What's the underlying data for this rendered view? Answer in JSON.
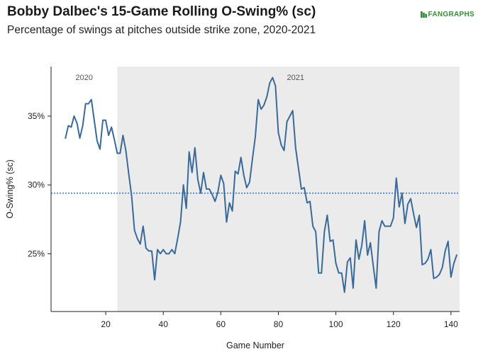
{
  "header": {
    "title": "Bobby Dalbec's 15-Game Rolling O-Swing% (sc)",
    "subtitle": "Percentage of swings at pitches outside strike zone, 2020-2021",
    "logo_text": "FANGRAPHS"
  },
  "colors": {
    "line": "#3a6a9a",
    "shade": "#ebebeb",
    "reference": "#3a6a9a",
    "logo": "#3a8a3a"
  },
  "chart_data": {
    "type": "line",
    "title": "Bobby Dalbec's 15-Game Rolling O-Swing% (sc)",
    "subtitle": "Percentage of swings at pitches outside strike zone, 2020-2021",
    "xlabel": "Game Number",
    "ylabel": "O-Swing% (sc)",
    "xlim": [
      1,
      143
    ],
    "ylim": [
      20.8,
      38.6
    ],
    "x_ticks": [
      20,
      40,
      60,
      80,
      100,
      120,
      140
    ],
    "y_ticks": [
      25,
      30,
      35
    ],
    "y_tick_labels": [
      "25%",
      "30%",
      "35%"
    ],
    "grid": false,
    "reference_line": {
      "y": 29.4,
      "style": "dotted"
    },
    "shaded_region": {
      "x_start": 24,
      "x_end": 143
    },
    "season_labels": [
      {
        "text": "2020",
        "x": 12.5
      },
      {
        "text": "2021",
        "x": 86
      }
    ],
    "series": [
      {
        "x": [
          6,
          7,
          8,
          9,
          10,
          11,
          12,
          13,
          14,
          15,
          16,
          17,
          18,
          19,
          20,
          21,
          22,
          23,
          24,
          25,
          26,
          27,
          28,
          29,
          30,
          31,
          32,
          33,
          34,
          35,
          36,
          37,
          38,
          39,
          40,
          41,
          42,
          43,
          44,
          45,
          46,
          47,
          48,
          49,
          50,
          51,
          52,
          53,
          54,
          55,
          56,
          57,
          58,
          59,
          60,
          61,
          62,
          63,
          64,
          65,
          66,
          67,
          68,
          69,
          70,
          71,
          72,
          73,
          74,
          75,
          76,
          77,
          78,
          79,
          80,
          81,
          82,
          83,
          84,
          85,
          86,
          87,
          88,
          89,
          90,
          91,
          92,
          93,
          94,
          95,
          96,
          97,
          98,
          99,
          100,
          101,
          102,
          103,
          104,
          105,
          106,
          107,
          108,
          109,
          110,
          111,
          112,
          113,
          114,
          115,
          116,
          117,
          118,
          119,
          120,
          121,
          122,
          123,
          124,
          125,
          126,
          127,
          128,
          129,
          130,
          131,
          132,
          133,
          134,
          135,
          136,
          137,
          138,
          139,
          140,
          141,
          142
        ],
        "values": [
          33.4,
          34.3,
          34.2,
          35.0,
          34.5,
          33.4,
          34.3,
          35.9,
          35.9,
          36.2,
          34.7,
          33.2,
          32.6,
          34.7,
          34.7,
          33.6,
          34.2,
          33.3,
          32.3,
          32.3,
          33.6,
          32.5,
          30.8,
          29.2,
          26.7,
          26.1,
          25.7,
          27.0,
          25.4,
          25.2,
          25.2,
          23.1,
          25.3,
          25.0,
          25.3,
          25.0,
          25.0,
          25.3,
          25.0,
          26.1,
          27.3,
          30.0,
          28.3,
          32.4,
          30.9,
          32.7,
          30.4,
          29.4,
          30.9,
          29.7,
          29.7,
          29.3,
          28.8,
          29.5,
          30.7,
          30.1,
          27.3,
          28.7,
          28.1,
          31.0,
          30.8,
          32.0,
          30.7,
          29.8,
          30.2,
          31.9,
          33.5,
          36.2,
          35.5,
          35.8,
          36.4,
          37.4,
          37.8,
          37.2,
          33.8,
          32.9,
          32.5,
          34.6,
          35.0,
          35.4,
          32.7,
          31.2,
          29.7,
          29.8,
          28.7,
          28.8,
          27.0,
          26.6,
          23.6,
          23.6,
          26.6,
          27.8,
          25.9,
          26.0,
          24.3,
          23.6,
          23.6,
          22.2,
          24.4,
          24.7,
          22.5,
          26.0,
          24.6,
          25.6,
          27.4,
          24.9,
          25.8,
          24.1,
          22.5,
          26.6,
          27.4,
          27.0,
          27.0,
          27.0,
          27.6,
          30.5,
          28.4,
          29.4,
          27.2,
          28.6,
          29.0,
          27.9,
          26.9,
          27.8,
          24.2,
          24.3,
          24.6,
          25.3,
          23.2,
          23.3,
          23.5,
          24.0,
          25.2,
          25.9,
          23.3,
          24.3,
          24.9
        ]
      }
    ]
  }
}
